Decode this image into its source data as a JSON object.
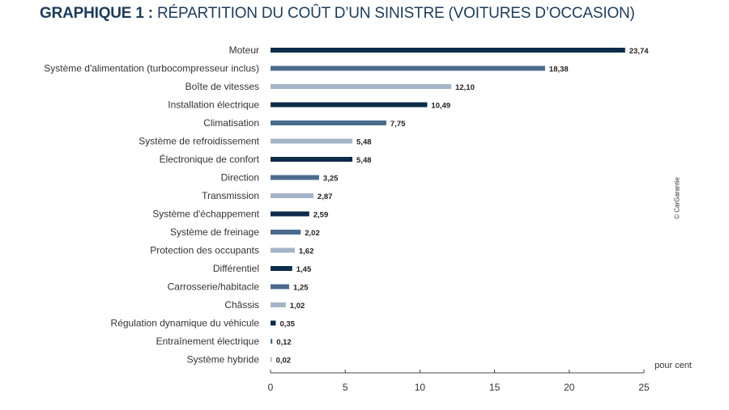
{
  "title": {
    "lead": "GRAPHIQUE 1 :",
    "text": "RÉPARTITION DU COÛT D’UN SINISTRE (VOITURES D’OCCASION)"
  },
  "credit": "© CarGarantie",
  "colors": {
    "dark": "#0d2b4a",
    "mid": "#4a6b8e",
    "light": "#a4b4c8",
    "title": "#1d3b5c"
  },
  "chart_data": {
    "type": "bar",
    "orientation": "horizontal",
    "categories": [
      "Moteur",
      "Système d'alimentation (turbocompresseur inclus)",
      "Boîte de vitesses",
      "Installation électrique",
      "Climatisation",
      "Système de refroidissement",
      "Électronique de confort",
      "Direction",
      "Transmission",
      "Système d'échappement",
      "Système de freinage",
      "Protection des occupants",
      "Différentiel",
      "Carrosserie/habitacle",
      "Châssis",
      "Régulation dynamique du véhicule",
      "Entraînement électrique",
      "Système hybride"
    ],
    "values": [
      23.74,
      18.38,
      12.1,
      10.49,
      7.75,
      5.48,
      5.48,
      3.25,
      2.87,
      2.59,
      2.02,
      1.62,
      1.45,
      1.25,
      1.02,
      0.35,
      0.12,
      0.02
    ],
    "value_labels": [
      "23,74",
      "18,38",
      "12,10",
      "10,49",
      "7,75",
      "5,48",
      "5,48",
      "3,25",
      "2,87",
      "2,59",
      "2,02",
      "1,62",
      "1,45",
      "1,25",
      "1,02",
      "0,35",
      "0,12",
      "0,02"
    ],
    "bar_colors": [
      "dark",
      "mid",
      "light",
      "dark",
      "mid",
      "light",
      "dark",
      "mid",
      "light",
      "dark",
      "mid",
      "light",
      "dark",
      "mid",
      "light",
      "dark",
      "mid",
      "light"
    ],
    "xlim": [
      0,
      25
    ],
    "xticks": [
      0,
      5,
      10,
      15,
      20,
      25
    ],
    "xlabel": "pour cent",
    "grid": false,
    "legend": "none"
  }
}
